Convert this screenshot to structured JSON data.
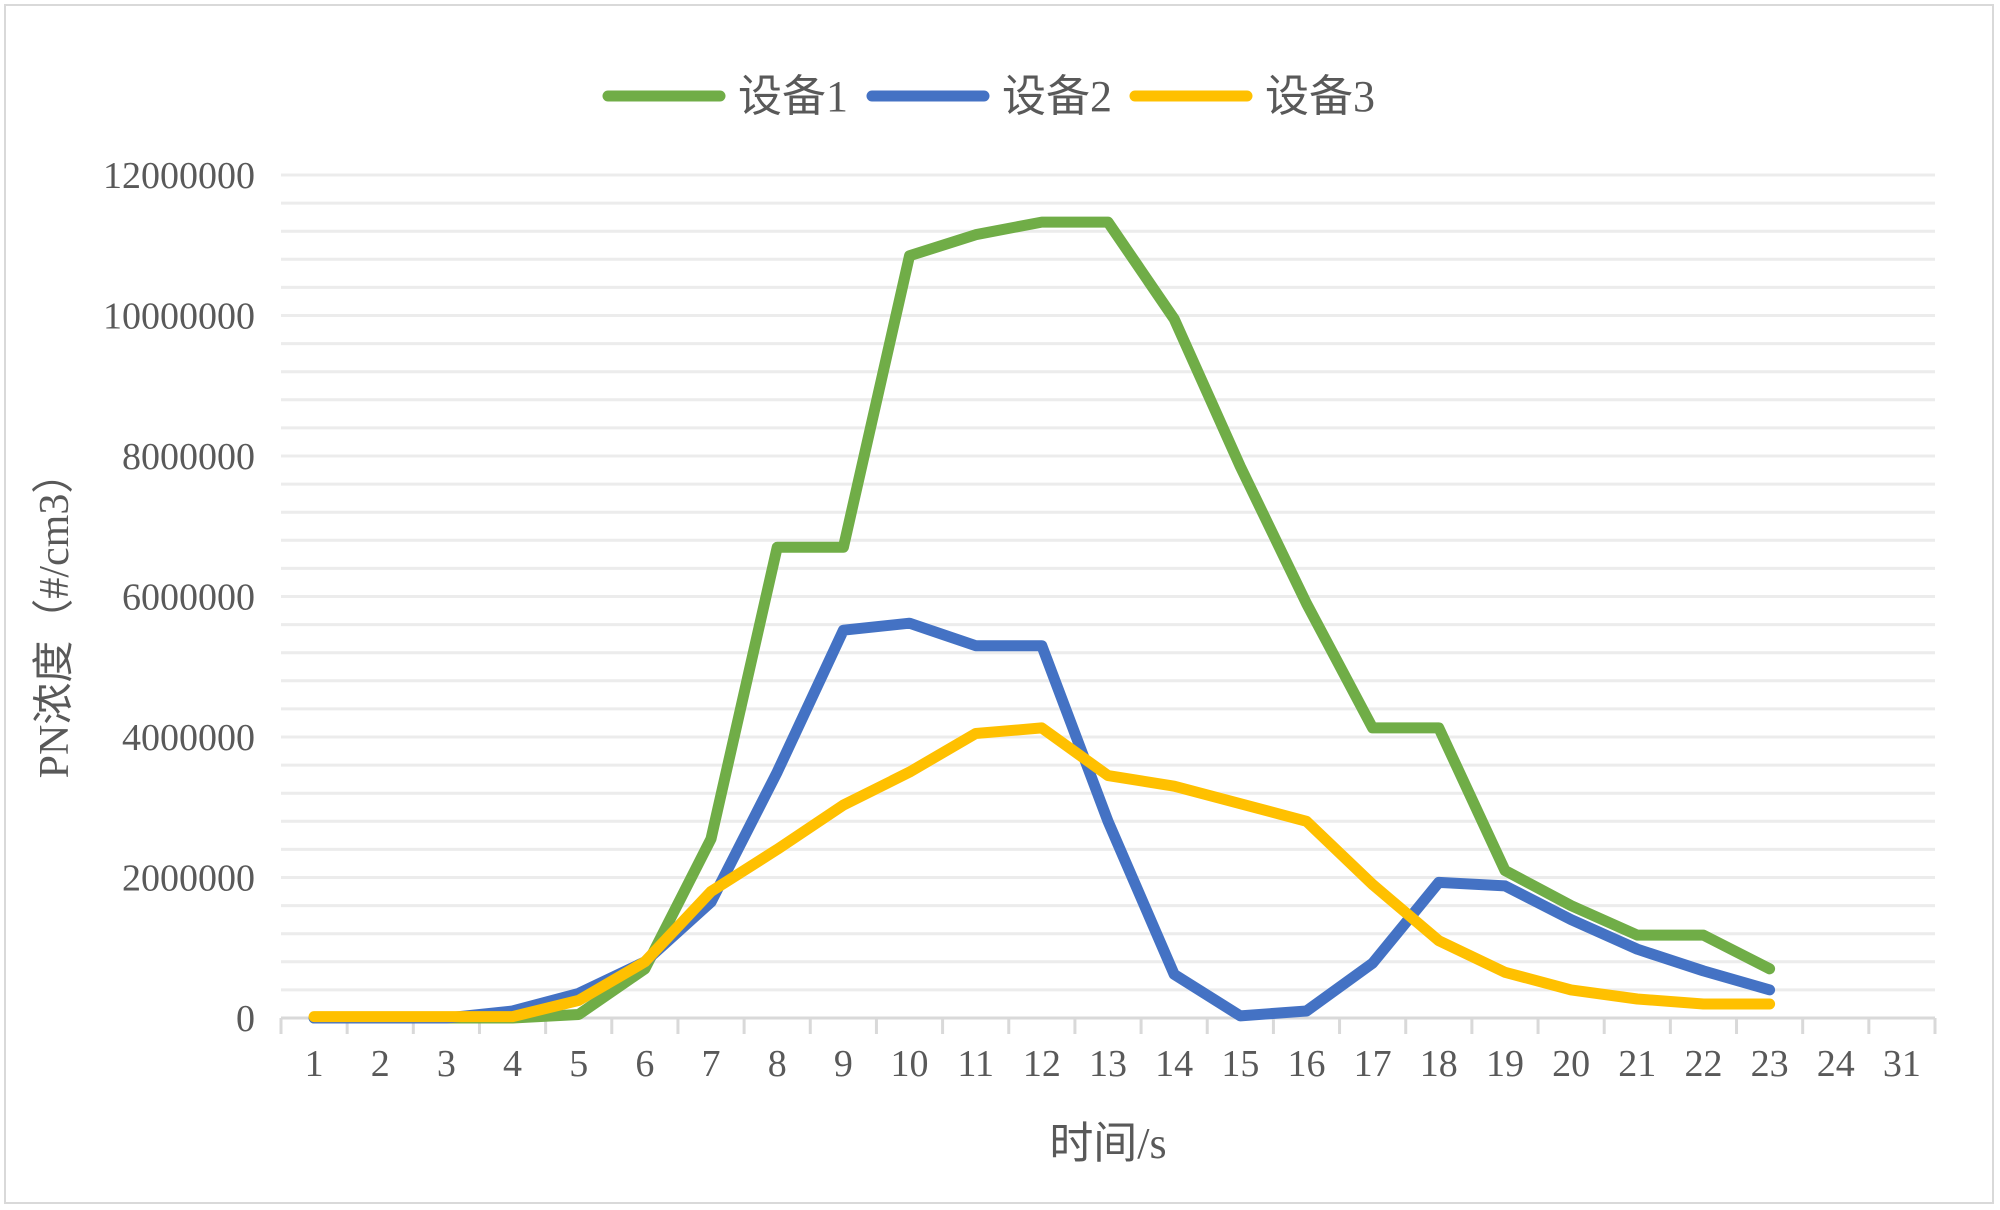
{
  "chart_data": {
    "type": "line",
    "title": "",
    "xlabel": "时间/s",
    "ylabel": "PN浓度（#/cm3）",
    "categories": [
      "1",
      "2",
      "3",
      "4",
      "5",
      "6",
      "7",
      "8",
      "9",
      "10",
      "11",
      "12",
      "13",
      "14",
      "15",
      "16",
      "17",
      "18",
      "19",
      "20",
      "21",
      "22",
      "23",
      "24",
      "31"
    ],
    "ylim": [
      0,
      12000000
    ],
    "yticks": [
      "0",
      "2000000",
      "4000000",
      "6000000",
      "8000000",
      "10000000",
      "12000000"
    ],
    "minor_grid_step": 400000,
    "grid": true,
    "legend_position": "top",
    "series": [
      {
        "name": "设备1",
        "color": "#70ad47",
        "values": [
          0,
          0,
          0,
          0,
          50000,
          700000,
          2550000,
          6700000,
          6700000,
          10850000,
          11150000,
          11330000,
          11330000,
          9950000,
          7850000,
          5900000,
          4130000,
          4130000,
          2100000,
          1600000,
          1180000,
          1180000,
          700000,
          null,
          null
        ]
      },
      {
        "name": "设备2",
        "color": "#4472c4",
        "values": [
          0,
          0,
          0,
          100000,
          350000,
          800000,
          1650000,
          3500000,
          5520000,
          5620000,
          5300000,
          5300000,
          2800000,
          620000,
          30000,
          100000,
          780000,
          1930000,
          1880000,
          1400000,
          980000,
          670000,
          400000,
          null,
          null
        ]
      },
      {
        "name": "设备3",
        "color": "#ffc000",
        "values": [
          20000,
          20000,
          20000,
          20000,
          250000,
          800000,
          1800000,
          2400000,
          3030000,
          3500000,
          4050000,
          4130000,
          3450000,
          3300000,
          3050000,
          2800000,
          1900000,
          1100000,
          650000,
          400000,
          270000,
          200000,
          200000,
          null,
          null
        ]
      }
    ]
  }
}
